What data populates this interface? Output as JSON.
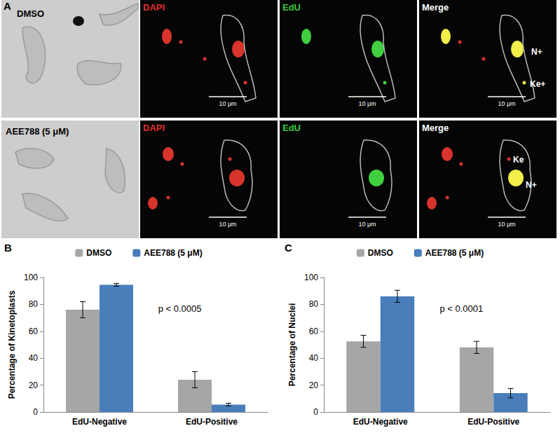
{
  "panel_a": {
    "label": "A",
    "channels": [
      "DAPI",
      "EdU",
      "Merge"
    ],
    "scale_bar": "10 μm",
    "rows": [
      {
        "condition": "DMSO",
        "annotations": [
          "N+",
          "Ke+"
        ]
      },
      {
        "condition": "AEE788 (5 μM)",
        "annotations": [
          "Ke",
          "N+"
        ]
      }
    ]
  },
  "chart_data": [
    {
      "panel": "B",
      "type": "bar",
      "ylabel": "Percentage of Kinetoplasts",
      "categories": [
        "EdU-Negative",
        "EdU-Positive"
      ],
      "series": [
        {
          "name": "DMSO",
          "color": "#a6a6a6",
          "values": [
            76,
            24
          ],
          "errors": [
            6,
            6
          ]
        },
        {
          "name": "AEE788 (5 μM)",
          "color": "#4a7ebb",
          "values": [
            94.5,
            5.5
          ],
          "errors": [
            1,
            1
          ]
        }
      ],
      "ylim": [
        0,
        100
      ],
      "yticks": [
        0,
        20,
        40,
        60,
        80,
        100
      ],
      "grid": false,
      "legend": "top",
      "annotations": [
        "p < 0.0005"
      ]
    },
    {
      "panel": "C",
      "type": "bar",
      "ylabel": "Percentage of Nuclei",
      "categories": [
        "EdU-Negative",
        "EdU-Positive"
      ],
      "series": [
        {
          "name": "DMSO",
          "color": "#a6a6a6",
          "values": [
            52.5,
            48
          ],
          "errors": [
            4.5,
            4.5
          ]
        },
        {
          "name": "AEE788 (5 μM)",
          "color": "#4a7ebb",
          "values": [
            86,
            14
          ],
          "errors": [
            4.5,
            3.5
          ]
        }
      ],
      "ylim": [
        0,
        100
      ],
      "yticks": [
        0,
        20,
        40,
        60,
        80,
        100
      ],
      "grid": false,
      "legend": "top",
      "annotations": [
        "p < 0.0001"
      ]
    }
  ]
}
